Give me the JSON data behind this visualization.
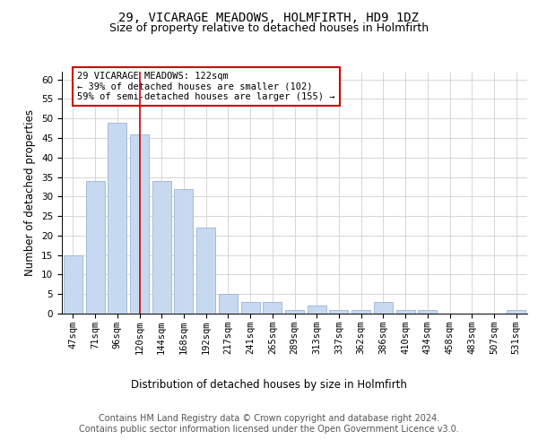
{
  "title": "29, VICARAGE MEADOWS, HOLMFIRTH, HD9 1DZ",
  "subtitle": "Size of property relative to detached houses in Holmfirth",
  "xlabel": "Distribution of detached houses by size in Holmfirth",
  "ylabel": "Number of detached properties",
  "categories": [
    "47sqm",
    "71sqm",
    "96sqm",
    "120sqm",
    "144sqm",
    "168sqm",
    "192sqm",
    "217sqm",
    "241sqm",
    "265sqm",
    "289sqm",
    "313sqm",
    "337sqm",
    "362sqm",
    "386sqm",
    "410sqm",
    "434sqm",
    "458sqm",
    "483sqm",
    "507sqm",
    "531sqm"
  ],
  "values": [
    15,
    34,
    49,
    46,
    34,
    32,
    22,
    5,
    3,
    3,
    1,
    2,
    1,
    1,
    3,
    1,
    1,
    0,
    0,
    0,
    1
  ],
  "bar_color": "#c6d9f1",
  "bar_edge_color": "#9ab3d5",
  "vline_x_index": 3,
  "vline_color": "#cc0000",
  "annotation_text": "29 VICARAGE MEADOWS: 122sqm\n← 39% of detached houses are smaller (102)\n59% of semi-detached houses are larger (155) →",
  "annotation_box_color": "#ffffff",
  "annotation_box_edge": "#cc0000",
  "ylim": [
    0,
    62
  ],
  "yticks": [
    0,
    5,
    10,
    15,
    20,
    25,
    30,
    35,
    40,
    45,
    50,
    55,
    60
  ],
  "footer_text": "Contains HM Land Registry data © Crown copyright and database right 2024.\nContains public sector information licensed under the Open Government Licence v3.0.",
  "title_fontsize": 10,
  "subtitle_fontsize": 9,
  "axis_label_fontsize": 8.5,
  "tick_fontsize": 7.5,
  "annotation_fontsize": 7.5,
  "footer_fontsize": 7,
  "background_color": "#ffffff",
  "grid_color": "#d0d0d0"
}
